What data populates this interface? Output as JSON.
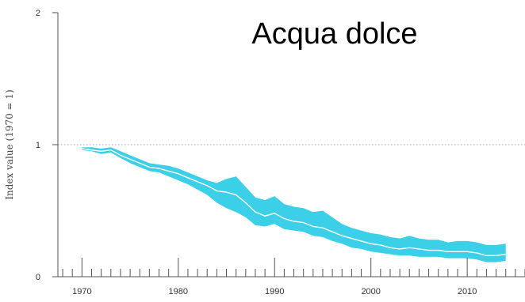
{
  "chart_data": {
    "type": "area",
    "title": "Acqua dolce",
    "xlabel": "",
    "ylabel": "Index value (1970 = 1)",
    "xlim": [
      1967.5,
      2016
    ],
    "ylim": [
      0,
      2
    ],
    "x_ticks": [
      "1970",
      "1980",
      "1990",
      "2000",
      "2010"
    ],
    "y_ticks": [
      "0",
      "1",
      "2"
    ],
    "reference_line": {
      "value": 1,
      "style": "dotted"
    },
    "grid": false,
    "colors": {
      "band": "#3bcfe8",
      "line": "#ffffff",
      "axis": "#555555",
      "reference": "#aaaaaa"
    },
    "series": [
      {
        "x": [
          1970,
          1971,
          1972,
          1973,
          1974,
          1975,
          1976,
          1977,
          1978,
          1979,
          1980,
          1981,
          1982,
          1983,
          1984,
          1985,
          1986,
          1987,
          1988,
          1989,
          1990,
          1991,
          1992,
          1993,
          1994,
          1995,
          1996,
          1997,
          1998,
          1999,
          2000,
          2001,
          2002,
          2003,
          2004,
          2005,
          2006,
          2007,
          2008,
          2009,
          2010,
          2011,
          2012,
          2013,
          2014
        ],
        "y": [
          0.97,
          0.96,
          0.95,
          0.96,
          0.92,
          0.89,
          0.86,
          0.83,
          0.82,
          0.8,
          0.78,
          0.75,
          0.72,
          0.69,
          0.65,
          0.64,
          0.62,
          0.56,
          0.49,
          0.46,
          0.48,
          0.44,
          0.42,
          0.41,
          0.38,
          0.37,
          0.34,
          0.31,
          0.29,
          0.27,
          0.25,
          0.24,
          0.22,
          0.21,
          0.22,
          0.21,
          0.2,
          0.2,
          0.19,
          0.19,
          0.19,
          0.18,
          0.16,
          0.16,
          0.17
        ],
        "lower": [
          0.96,
          0.95,
          0.93,
          0.94,
          0.9,
          0.86,
          0.83,
          0.8,
          0.79,
          0.76,
          0.73,
          0.7,
          0.66,
          0.62,
          0.56,
          0.52,
          0.49,
          0.45,
          0.39,
          0.38,
          0.4,
          0.36,
          0.35,
          0.34,
          0.31,
          0.3,
          0.27,
          0.25,
          0.22,
          0.21,
          0.19,
          0.18,
          0.17,
          0.16,
          0.16,
          0.15,
          0.15,
          0.15,
          0.14,
          0.14,
          0.14,
          0.13,
          0.11,
          0.11,
          0.12
        ],
        "upper": [
          0.98,
          0.98,
          0.97,
          0.98,
          0.95,
          0.92,
          0.89,
          0.86,
          0.85,
          0.84,
          0.82,
          0.79,
          0.76,
          0.73,
          0.71,
          0.74,
          0.76,
          0.68,
          0.6,
          0.58,
          0.61,
          0.55,
          0.53,
          0.52,
          0.49,
          0.5,
          0.45,
          0.4,
          0.37,
          0.35,
          0.33,
          0.32,
          0.3,
          0.29,
          0.31,
          0.29,
          0.28,
          0.28,
          0.26,
          0.27,
          0.27,
          0.26,
          0.24,
          0.24,
          0.25
        ]
      }
    ]
  }
}
